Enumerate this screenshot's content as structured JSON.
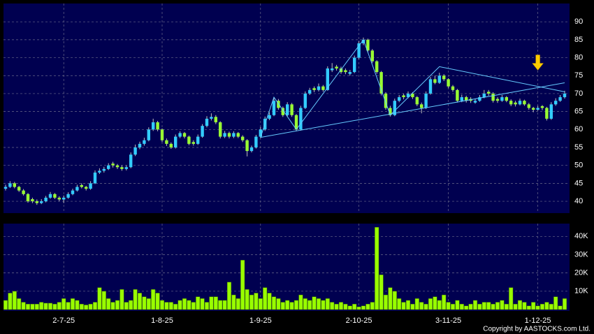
{
  "chart_data": [
    {
      "type": "candlestick",
      "up_color": "#33ccff",
      "down_color": "#99ff33",
      "grid": true,
      "ylim": [
        36.7,
        95.1
      ],
      "yticks": [
        40,
        45,
        50,
        55,
        60,
        65,
        70,
        75,
        80,
        85,
        90
      ],
      "ohlc": [
        [
          43.5,
          44.6,
          43,
          44
        ],
        [
          44,
          45.6,
          43.7,
          45
        ],
        [
          45,
          45.4,
          43.6,
          44
        ],
        [
          44,
          44.3,
          42.6,
          43
        ],
        [
          43,
          43.4,
          41.6,
          42
        ],
        [
          42,
          42.3,
          39.6,
          40
        ],
        [
          40.6,
          41,
          39.5,
          40
        ],
        [
          40,
          40.5,
          39,
          39.5
        ],
        [
          39.5,
          40.6,
          39.2,
          40
        ],
        [
          40,
          41.5,
          39.7,
          41
        ],
        [
          41,
          42.6,
          40.7,
          42
        ],
        [
          42,
          42.3,
          40.6,
          41
        ],
        [
          41,
          41.4,
          40,
          40.5
        ],
        [
          40.5,
          41.6,
          39.5,
          41
        ],
        [
          41,
          42.5,
          40.7,
          42
        ],
        [
          42,
          43.5,
          41.7,
          43
        ],
        [
          43,
          44.6,
          42.7,
          44
        ],
        [
          44.5,
          45,
          43.6,
          44
        ],
        [
          44,
          44.3,
          43,
          43.5
        ],
        [
          43.5,
          45.6,
          43.2,
          45
        ],
        [
          45,
          48.6,
          44.8,
          48
        ],
        [
          48,
          49.2,
          47.6,
          48.5
        ],
        [
          48.5,
          49.6,
          48,
          49
        ],
        [
          49,
          50.6,
          48.7,
          50
        ],
        [
          50.5,
          51,
          49.4,
          50
        ],
        [
          50,
          50.4,
          49,
          49.5
        ],
        [
          49.5,
          50,
          48.5,
          49
        ],
        [
          49,
          50,
          48.6,
          49.5
        ],
        [
          49.5,
          53.6,
          49.2,
          53
        ],
        [
          53,
          55.8,
          52.6,
          55
        ],
        [
          55,
          56.6,
          54.5,
          56
        ],
        [
          56,
          57.7,
          55.5,
          57
        ],
        [
          57,
          60.6,
          56.7,
          60
        ],
        [
          60,
          63,
          59.6,
          62
        ],
        [
          62,
          62.4,
          59.5,
          60
        ],
        [
          60,
          60.3,
          56.5,
          57
        ],
        [
          57,
          57.5,
          55.4,
          56
        ],
        [
          56,
          56.4,
          54.6,
          55
        ],
        [
          55,
          58.6,
          54.7,
          58
        ],
        [
          58,
          59.5,
          57.6,
          59
        ],
        [
          59,
          59.3,
          57.5,
          58
        ],
        [
          58,
          58.3,
          55.6,
          56
        ],
        [
          56.5,
          57,
          55.5,
          56
        ],
        [
          56,
          58.6,
          55.7,
          58
        ],
        [
          58,
          61.5,
          57.7,
          61
        ],
        [
          61,
          63.7,
          60.6,
          63
        ],
        [
          63,
          64.5,
          62.5,
          63.5
        ],
        [
          63.5,
          64,
          61.5,
          62
        ],
        [
          62,
          62.3,
          57.5,
          58
        ],
        [
          58,
          59.6,
          57.6,
          59
        ],
        [
          59,
          59.4,
          57.5,
          58
        ],
        [
          58,
          59.5,
          57.6,
          59
        ],
        [
          59,
          59.3,
          57.6,
          58
        ],
        [
          58,
          58.4,
          56.5,
          57
        ],
        [
          57,
          57.3,
          52.5,
          54
        ],
        [
          54,
          55.5,
          53.6,
          55
        ],
        [
          55,
          58.5,
          54.7,
          58
        ],
        [
          58,
          60.7,
          57.6,
          60
        ],
        [
          60,
          63.6,
          59.6,
          63
        ],
        [
          63,
          64.8,
          62.6,
          64
        ],
        [
          64,
          69,
          63.7,
          68
        ],
        [
          68,
          68.5,
          65.5,
          66
        ],
        [
          66,
          66.4,
          63.5,
          64
        ],
        [
          64,
          67.6,
          63.6,
          67
        ],
        [
          67,
          67.4,
          63.5,
          64
        ],
        [
          64,
          64.3,
          59.5,
          60
        ],
        [
          60,
          66.6,
          59.7,
          66
        ],
        [
          66,
          70.6,
          65.7,
          70
        ],
        [
          70,
          71.6,
          69.6,
          71
        ],
        [
          71.5,
          72,
          70.4,
          71
        ],
        [
          71,
          72.8,
          70.6,
          72
        ],
        [
          72,
          72.4,
          70.5,
          71
        ],
        [
          71,
          77.6,
          70.8,
          77
        ],
        [
          76.5,
          78.5,
          76,
          77
        ],
        [
          77.5,
          78,
          76.4,
          77
        ],
        [
          77,
          77.5,
          75.5,
          76
        ],
        [
          76.5,
          77,
          75.4,
          76
        ],
        [
          75.5,
          76.6,
          75,
          76
        ],
        [
          76,
          80.6,
          75.7,
          80
        ],
        [
          80,
          84.7,
          79.6,
          84
        ],
        [
          84,
          85.6,
          83.5,
          85
        ],
        [
          85,
          85.3,
          81.5,
          82
        ],
        [
          82,
          82.4,
          78.5,
          79
        ],
        [
          79,
          79.3,
          75.5,
          76
        ],
        [
          76,
          76.3,
          69.5,
          70
        ],
        [
          70,
          70.4,
          65.5,
          66
        ],
        [
          66,
          66.6,
          63.6,
          64
        ],
        [
          64,
          68.6,
          63.7,
          68
        ],
        [
          68,
          69.6,
          67.6,
          69
        ],
        [
          69.5,
          70,
          68.4,
          69
        ],
        [
          69,
          70.6,
          68.7,
          70
        ],
        [
          70,
          70.4,
          68.5,
          69
        ],
        [
          69,
          69.3,
          66.5,
          67
        ],
        [
          67,
          67.5,
          64.5,
          66
        ],
        [
          66,
          70.6,
          65.7,
          70
        ],
        [
          70,
          74.6,
          69.7,
          74
        ],
        [
          74,
          75,
          72.6,
          73
        ],
        [
          73,
          75.8,
          72.7,
          75
        ],
        [
          75,
          75.4,
          73.5,
          74
        ],
        [
          74,
          74.3,
          71.5,
          72
        ],
        [
          72,
          72.4,
          70.5,
          71
        ],
        [
          71,
          71.3,
          67.5,
          68
        ],
        [
          68,
          69.7,
          67.6,
          69
        ],
        [
          69,
          69.4,
          67.5,
          68
        ],
        [
          68.5,
          69,
          67.4,
          68
        ],
        [
          67.5,
          68.6,
          67.2,
          68
        ],
        [
          68,
          69.6,
          67.7,
          69
        ],
        [
          69,
          71,
          68.7,
          70
        ],
        [
          70.5,
          71,
          69.4,
          70
        ],
        [
          70,
          70.4,
          67.5,
          68
        ],
        [
          68.5,
          69,
          67.4,
          68
        ],
        [
          68,
          69.6,
          67.7,
          69
        ],
        [
          69,
          69.3,
          67.6,
          68
        ],
        [
          68,
          68.4,
          66.5,
          67
        ],
        [
          67.5,
          68,
          66.4,
          67
        ],
        [
          67,
          68.6,
          66.7,
          68
        ],
        [
          68,
          68.3,
          66.6,
          67
        ],
        [
          67,
          67.4,
          65.5,
          66
        ],
        [
          66,
          66.3,
          64.8,
          65.5
        ],
        [
          65.5,
          66.6,
          65.2,
          66
        ],
        [
          66.5,
          66.8,
          65.4,
          66
        ],
        [
          66,
          66.3,
          62.5,
          63
        ],
        [
          63,
          67.6,
          62.7,
          67
        ],
        [
          67,
          68.7,
          66.6,
          68
        ],
        [
          68,
          69.6,
          67.7,
          69
        ],
        [
          69,
          70.8,
          68.6,
          70
        ]
      ],
      "trend_lines": [
        {
          "color": "#66ccff",
          "points": [
            [
              57,
              57.8
            ],
            [
              125,
              73
            ]
          ]
        },
        {
          "color": "#66ccff",
          "points": [
            [
              57,
              57.8
            ],
            [
              60,
              69
            ],
            [
              65,
              60
            ],
            [
              80,
              85
            ],
            [
              86,
              64
            ],
            [
              97,
              77.5
            ],
            [
              125,
              70.5
            ]
          ]
        }
      ],
      "arrow": {
        "index": 119,
        "price": 76.5,
        "color": "#ffcc00"
      }
    },
    {
      "type": "bar",
      "color": "#99ff00",
      "grid": true,
      "ylim": [
        0,
        47000
      ],
      "yticks": [
        {
          "value": 10000,
          "label": "10K"
        },
        {
          "value": 20000,
          "label": "20K"
        },
        {
          "value": 30000,
          "label": "30K"
        },
        {
          "value": 40000,
          "label": "40K"
        }
      ],
      "categories": [
        null,
        null,
        null,
        null,
        null,
        null,
        null,
        null,
        null,
        null,
        null,
        null,
        null,
        "2-7-25",
        null,
        null,
        null,
        null,
        null,
        null,
        null,
        null,
        null,
        null,
        null,
        null,
        null,
        null,
        null,
        null,
        null,
        null,
        null,
        null,
        null,
        "1-8-25",
        null,
        null,
        null,
        null,
        null,
        null,
        null,
        null,
        null,
        null,
        null,
        null,
        null,
        null,
        null,
        null,
        null,
        null,
        null,
        null,
        null,
        "1-9-25",
        null,
        null,
        null,
        null,
        null,
        null,
        null,
        null,
        null,
        null,
        null,
        null,
        null,
        null,
        null,
        null,
        null,
        null,
        null,
        null,
        null,
        "2-10-25",
        null,
        null,
        null,
        null,
        null,
        null,
        null,
        null,
        null,
        null,
        null,
        null,
        null,
        null,
        null,
        null,
        null,
        null,
        null,
        "3-11-25",
        null,
        null,
        null,
        null,
        null,
        null,
        null,
        null,
        null,
        null,
        null,
        null,
        null,
        null,
        null,
        null,
        null,
        null,
        null,
        "1-12-25",
        null,
        null,
        null,
        null,
        null,
        null
      ],
      "values": [
        5000,
        9000,
        10000,
        6000,
        4000,
        3000,
        3000,
        3000,
        4000,
        3500,
        3500,
        3000,
        4000,
        6000,
        4000,
        6000,
        5000,
        3000,
        2500,
        3000,
        4000,
        12000,
        10000,
        6000,
        4000,
        5000,
        11000,
        4000,
        5000,
        11000,
        9000,
        7000,
        6000,
        11000,
        9000,
        5000,
        4000,
        4000,
        3000,
        5000,
        6000,
        5000,
        4000,
        7000,
        6000,
        4000,
        7000,
        7000,
        5000,
        5000,
        15000,
        8000,
        6000,
        27000,
        11000,
        8000,
        9000,
        6000,
        12000,
        9000,
        7000,
        6000,
        4000,
        5000,
        4000,
        5000,
        8000,
        6000,
        5000,
        7000,
        6000,
        5000,
        6000,
        4000,
        3000,
        4000,
        3000,
        2000,
        3000,
        1500,
        2000,
        3000,
        4000,
        45000,
        19000,
        8000,
        12000,
        10000,
        6000,
        4000,
        5000,
        3000,
        6000,
        4000,
        3000,
        6000,
        7000,
        5000,
        8000,
        4000,
        3000,
        5000,
        3000,
        2000,
        3000,
        5000,
        3000,
        4000,
        4000,
        3000,
        4000,
        5000,
        3000,
        12000,
        3000,
        5000,
        4000,
        2000,
        4000,
        2000,
        3000,
        4000,
        3000,
        7000,
        2000,
        6000
      ]
    }
  ],
  "footer": "Copyright by AASTOCKS.com Ltd."
}
